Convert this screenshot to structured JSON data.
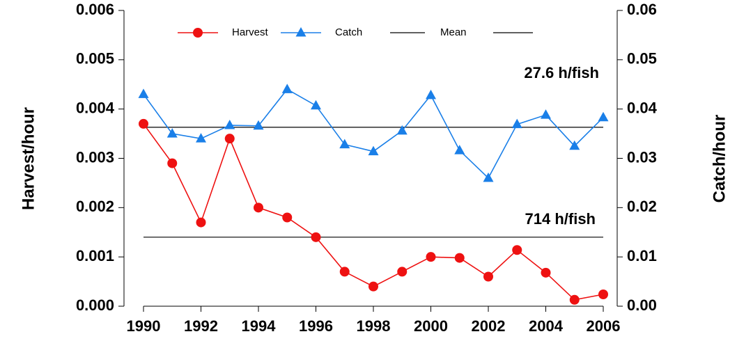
{
  "chart_data": {
    "type": "line",
    "x": [
      1990,
      1991,
      1992,
      1993,
      1994,
      1995,
      1996,
      1997,
      1998,
      1999,
      2000,
      2001,
      2002,
      2003,
      2004,
      2005,
      2006
    ],
    "series": [
      {
        "name": "Harvest",
        "color": "#ee1111",
        "marker": "circle",
        "axis": "y",
        "values": [
          0.0037,
          0.0029,
          0.0017,
          0.0034,
          0.002,
          0.0018,
          0.0014,
          0.0007,
          0.0004,
          0.0007,
          0.001,
          0.00098,
          0.0006,
          0.00114,
          0.00068,
          0.00013,
          0.00024
        ]
      },
      {
        "name": "Catch",
        "color": "#1a7fe8",
        "marker": "triangle",
        "axis": "y2",
        "values": [
          0.043,
          0.035,
          0.034,
          0.0367,
          0.0366,
          0.044,
          0.0407,
          0.0328,
          0.0314,
          0.0356,
          0.0428,
          0.0316,
          0.026,
          0.0369,
          0.0388,
          0.0325,
          0.0383
        ]
      }
    ],
    "mean": {
      "name": "Mean",
      "color": "#000000",
      "harvest": 0.0014,
      "catch": 0.0363
    },
    "annotations": [
      "27.6 h/fish",
      "714 h/fish"
    ],
    "ylabel": "Harvest/hour",
    "y2label": "Catch/hour",
    "xlim": [
      1990,
      2006
    ],
    "xticks": [
      1990,
      1992,
      1994,
      1996,
      1998,
      2000,
      2002,
      2004,
      2006
    ],
    "ylim": [
      0,
      0.006
    ],
    "yticks": [
      {
        "value": 0,
        "label": "0.000"
      },
      0.001,
      0.002,
      0.003,
      0.004,
      0.005,
      0.006
    ],
    "y2lim": [
      0,
      0.06
    ],
    "y2ticks": [
      {
        "value": 0,
        "label": "0.00"
      },
      0.01,
      0.02,
      0.03,
      0.04,
      0.05,
      0.06
    ]
  }
}
